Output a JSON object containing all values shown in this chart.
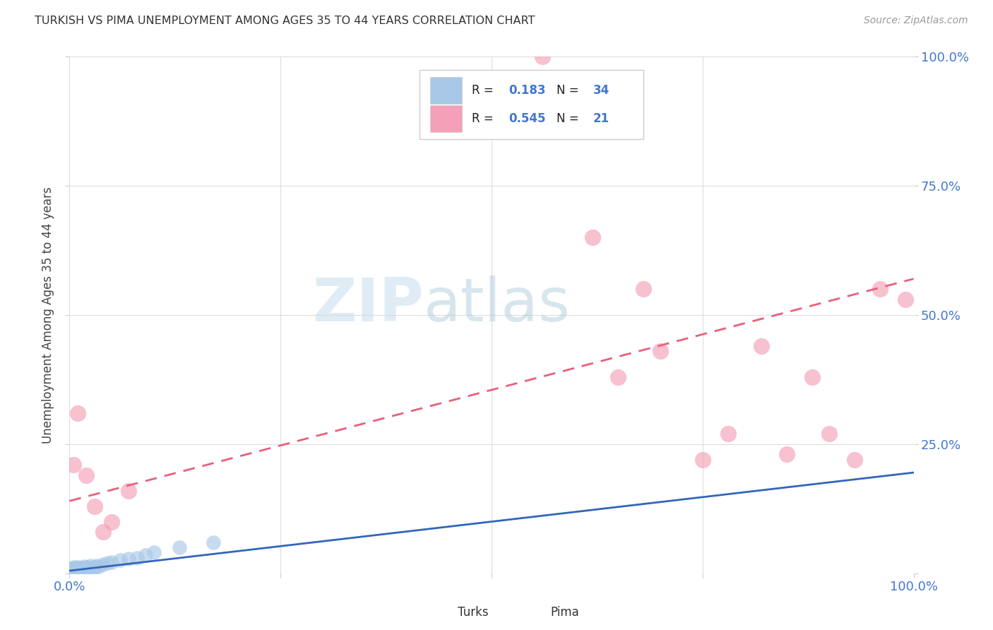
{
  "title": "TURKISH VS PIMA UNEMPLOYMENT AMONG AGES 35 TO 44 YEARS CORRELATION CHART",
  "source": "Source: ZipAtlas.com",
  "ylabel": "Unemployment Among Ages 35 to 44 years",
  "xlim": [
    0,
    1.0
  ],
  "ylim": [
    0,
    1.0
  ],
  "turks_color": "#a8c8e8",
  "pima_color": "#f4a0b8",
  "turks_line_color": "#3366bb",
  "pima_line_color": "#e8607a",
  "watermark_zip": "ZIP",
  "watermark_atlas": "atlas",
  "background_color": "#ffffff",
  "turks_x": [
    0.003,
    0.003,
    0.003,
    0.004,
    0.005,
    0.005,
    0.006,
    0.007,
    0.008,
    0.009,
    0.01,
    0.01,
    0.012,
    0.013,
    0.015,
    0.017,
    0.018,
    0.02,
    0.022,
    0.025,
    0.028,
    0.03,
    0.032,
    0.035,
    0.04,
    0.045,
    0.05,
    0.06,
    0.07,
    0.08,
    0.09,
    0.1,
    0.13,
    0.17
  ],
  "turks_y": [
    0.003,
    0.006,
    0.009,
    0.005,
    0.008,
    0.012,
    0.007,
    0.01,
    0.008,
    0.01,
    0.006,
    0.012,
    0.009,
    0.007,
    0.01,
    0.013,
    0.008,
    0.01,
    0.012,
    0.015,
    0.009,
    0.012,
    0.015,
    0.013,
    0.018,
    0.02,
    0.022,
    0.025,
    0.028,
    0.03,
    0.035,
    0.04,
    0.05,
    0.06
  ],
  "pima_x": [
    0.005,
    0.01,
    0.02,
    0.03,
    0.04,
    0.05,
    0.07,
    0.56,
    0.62,
    0.65,
    0.68,
    0.7,
    0.75,
    0.78,
    0.82,
    0.85,
    0.88,
    0.9,
    0.93,
    0.96,
    0.99
  ],
  "pima_y": [
    0.21,
    0.31,
    0.19,
    0.13,
    0.08,
    0.1,
    0.16,
    1.0,
    0.65,
    0.38,
    0.55,
    0.43,
    0.22,
    0.27,
    0.44,
    0.23,
    0.38,
    0.27,
    0.22,
    0.55,
    0.53
  ],
  "turks_line_x": [
    0.0,
    1.0
  ],
  "turks_line_y": [
    0.005,
    0.195
  ],
  "pima_line_x": [
    0.0,
    1.0
  ],
  "pima_line_y": [
    0.14,
    0.57
  ]
}
